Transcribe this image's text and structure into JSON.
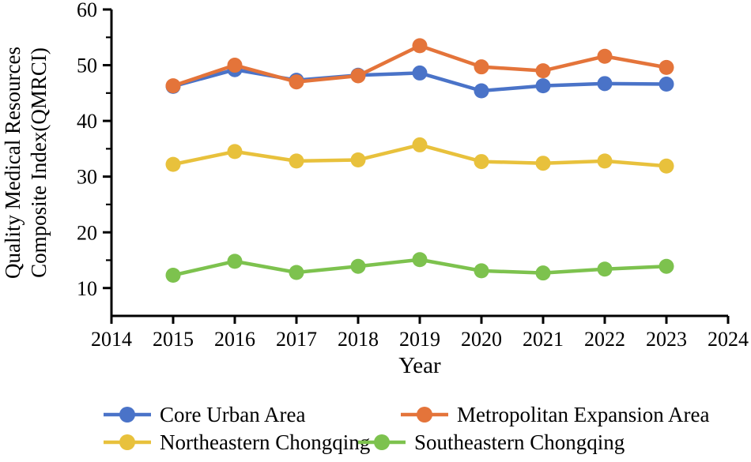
{
  "figure": {
    "background": "#ffffff",
    "text_color": "#000000"
  },
  "axes": {
    "x_title": "Year",
    "y_title_line1": "Quality Medical Resources",
    "y_title_line2": "Composite Index(QMRCI)"
  },
  "chart_data": {
    "type": "line",
    "title": "",
    "xlabel": "Year",
    "ylabel": "Quality Medical Resources Composite Index(QMRCI)",
    "ylabel_lines": [
      "Quality Medical Resources",
      "Composite Index(QMRCI)"
    ],
    "x": [
      2015,
      2016,
      2017,
      2018,
      2019,
      2020,
      2021,
      2022,
      2023
    ],
    "series": [
      {
        "name": "Core Urban Area",
        "color": "#4a73c8",
        "values": [
          46.2,
          49.2,
          47.3,
          48.2,
          48.6,
          45.4,
          46.3,
          46.7,
          46.6
        ]
      },
      {
        "name": "Metropolitan Expansion Area",
        "color": "#e4743a",
        "values": [
          46.3,
          50.0,
          47.0,
          48.1,
          53.5,
          49.7,
          49.0,
          51.6,
          49.6
        ]
      },
      {
        "name": "Northeastern Chongqing",
        "color": "#e8c13c",
        "values": [
          32.2,
          34.5,
          32.8,
          33.0,
          35.7,
          32.7,
          32.4,
          32.8,
          31.9
        ]
      },
      {
        "name": "Southeastern Chongqing",
        "color": "#7dc24e",
        "values": [
          12.3,
          14.8,
          12.8,
          13.9,
          15.1,
          13.1,
          12.7,
          13.4,
          13.9
        ]
      }
    ],
    "xlim": [
      2014,
      2024
    ],
    "ylim": [
      5,
      60
    ],
    "x_ticks": [
      2014,
      2015,
      2016,
      2017,
      2018,
      2019,
      2020,
      2021,
      2022,
      2023,
      2024
    ],
    "y_ticks_major": [
      10,
      20,
      30,
      40,
      50,
      60
    ],
    "y_ticks_minor": [
      15,
      25,
      35,
      45,
      55
    ],
    "grid": false,
    "legend_position": "bottom",
    "marker": "circle",
    "axis_color": "#000000"
  }
}
